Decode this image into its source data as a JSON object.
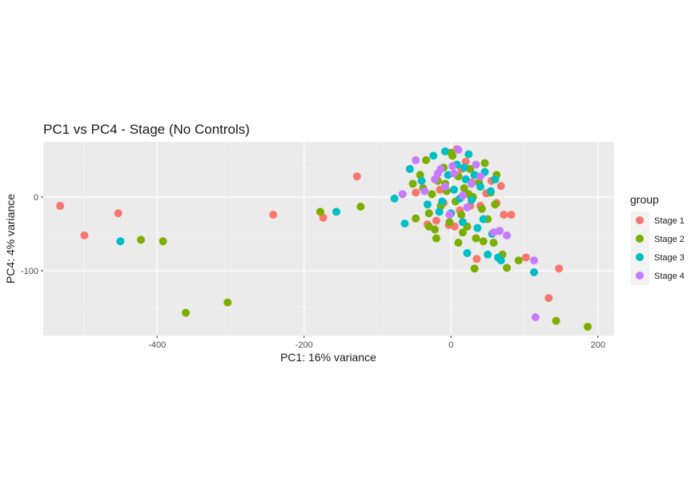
{
  "chart_data": {
    "type": "scatter",
    "title": "PC1 vs PC4 - Stage (No Controls)",
    "xlabel": "PC1: 16% variance",
    "ylabel": "PC4: 4% variance",
    "xlim": [
      -555,
      222
    ],
    "ylim": [
      -188,
      75
    ],
    "x_ticks": [
      -400,
      -200,
      0,
      200
    ],
    "y_ticks": [
      0,
      -100
    ],
    "x_tick_labels": [
      "-400",
      "-200",
      "0",
      "200"
    ],
    "y_tick_labels": [
      "0",
      "-100"
    ],
    "grid": true,
    "legend": {
      "title": "group",
      "position": "right"
    },
    "series": [
      {
        "name": "Stage 1",
        "color": "#F8766D",
        "points": [
          [
            -532,
            -12
          ],
          [
            -499,
            -52
          ],
          [
            -453,
            -22
          ],
          [
            -242,
            -24
          ],
          [
            -174,
            -28
          ],
          [
            -128,
            28
          ],
          [
            -48,
            6
          ],
          [
            -32,
            -37
          ],
          [
            -20,
            -32
          ],
          [
            -10,
            -8
          ],
          [
            -3,
            -38
          ],
          [
            5,
            -40
          ],
          [
            12,
            -18
          ],
          [
            20,
            48
          ],
          [
            28,
            20
          ],
          [
            35,
            -84
          ],
          [
            40,
            -12
          ],
          [
            48,
            5
          ],
          [
            55,
            22
          ],
          [
            62,
            -8
          ],
          [
            68,
            15
          ],
          [
            72,
            -24
          ],
          [
            82,
            -24
          ],
          [
            102,
            -82
          ],
          [
            133,
            -137
          ],
          [
            147,
            -97
          ],
          [
            8,
            65
          ],
          [
            -15,
            10
          ],
          [
            26,
            -12
          ],
          [
            14,
            38
          ]
        ]
      },
      {
        "name": "Stage 2",
        "color": "#7CAE00",
        "points": [
          [
            -422,
            -58
          ],
          [
            -392,
            -60
          ],
          [
            -361,
            -157
          ],
          [
            -304,
            -143
          ],
          [
            -178,
            -20
          ],
          [
            -123,
            -13
          ],
          [
            -52,
            18
          ],
          [
            -48,
            -29
          ],
          [
            -42,
            30
          ],
          [
            -38,
            12
          ],
          [
            -34,
            50
          ],
          [
            -30,
            -22
          ],
          [
            -26,
            4
          ],
          [
            -22,
            -44
          ],
          [
            -18,
            22
          ],
          [
            -14,
            -12
          ],
          [
            -10,
            40
          ],
          [
            -6,
            8
          ],
          [
            -2,
            -34
          ],
          [
            2,
            56
          ],
          [
            6,
            -6
          ],
          [
            10,
            28
          ],
          [
            14,
            -24
          ],
          [
            18,
            12
          ],
          [
            22,
            -40
          ],
          [
            26,
            38
          ],
          [
            30,
            0
          ],
          [
            34,
            -56
          ],
          [
            38,
            20
          ],
          [
            42,
            -16
          ],
          [
            46,
            46
          ],
          [
            50,
            -30
          ],
          [
            54,
            6
          ],
          [
            58,
            -62
          ],
          [
            62,
            30
          ],
          [
            66,
            -46
          ],
          [
            70,
            -78
          ],
          [
            76,
            -96
          ],
          [
            92,
            -86
          ],
          [
            32,
            -97
          ],
          [
            143,
            -168
          ],
          [
            186,
            -176
          ],
          [
            -20,
            -56
          ],
          [
            -8,
            18
          ],
          [
            16,
            -48
          ],
          [
            44,
            -60
          ],
          [
            60,
            -10
          ],
          [
            24,
            4
          ],
          [
            -30,
            -40
          ],
          [
            0,
            60
          ],
          [
            10,
            -62
          ]
        ]
      },
      {
        "name": "Stage 3",
        "color": "#00BFC4",
        "points": [
          [
            -450,
            -60
          ],
          [
            -156,
            -20
          ],
          [
            -77,
            -2
          ],
          [
            -63,
            -36
          ],
          [
            -56,
            38
          ],
          [
            -40,
            22
          ],
          [
            -32,
            -10
          ],
          [
            -24,
            56
          ],
          [
            -16,
            -20
          ],
          [
            -8,
            62
          ],
          [
            -4,
            30
          ],
          [
            0,
            -22
          ],
          [
            4,
            10
          ],
          [
            8,
            44
          ],
          [
            12,
            -2
          ],
          [
            16,
            -34
          ],
          [
            20,
            24
          ],
          [
            22,
            -76
          ],
          [
            24,
            58
          ],
          [
            28,
            -4
          ],
          [
            32,
            30
          ],
          [
            36,
            -42
          ],
          [
            40,
            14
          ],
          [
            44,
            -30
          ],
          [
            50,
            -78
          ],
          [
            54,
            8
          ],
          [
            60,
            24
          ],
          [
            64,
            -82
          ],
          [
            68,
            -86
          ],
          [
            113,
            -102
          ],
          [
            -12,
            -6
          ],
          [
            18,
            40
          ],
          [
            46,
            34
          ],
          [
            56,
            -50
          ]
        ]
      },
      {
        "name": "Stage 4",
        "color": "#C77CFF",
        "points": [
          [
            -66,
            4
          ],
          [
            -48,
            50
          ],
          [
            -36,
            8
          ],
          [
            -22,
            24
          ],
          [
            -14,
            38
          ],
          [
            -8,
            14
          ],
          [
            -2,
            -24
          ],
          [
            4,
            32
          ],
          [
            10,
            64
          ],
          [
            16,
            2
          ],
          [
            28,
            18
          ],
          [
            34,
            44
          ],
          [
            58,
            -48
          ],
          [
            66,
            -46
          ],
          [
            76,
            -52
          ],
          [
            113,
            -86
          ],
          [
            115,
            -163
          ],
          [
            -18,
            32
          ],
          [
            2,
            42
          ],
          [
            22,
            -14
          ],
          [
            40,
            28
          ]
        ]
      }
    ]
  }
}
